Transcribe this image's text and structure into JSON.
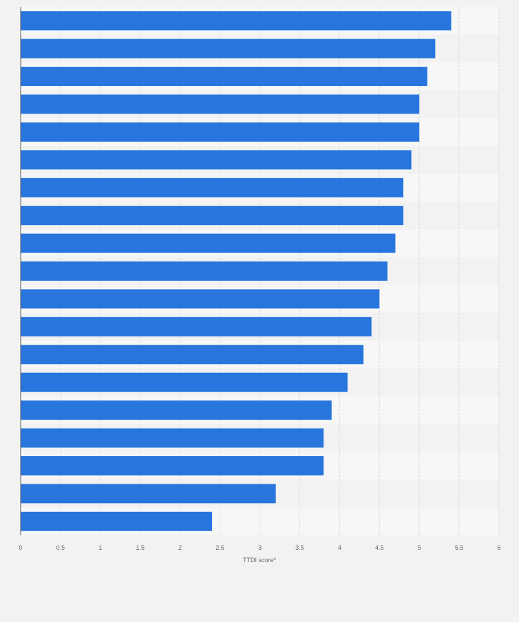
{
  "chart_data": {
    "type": "bar",
    "orientation": "horizontal",
    "categories": [
      "",
      "",
      "",
      "",
      "",
      "",
      "",
      "",
      "",
      "",
      "",
      "",
      "",
      "",
      "",
      "",
      "",
      "",
      ""
    ],
    "values": [
      5.4,
      5.2,
      5.1,
      5.0,
      5.0,
      4.9,
      4.8,
      4.8,
      4.7,
      4.6,
      4.5,
      4.4,
      4.3,
      4.1,
      3.9,
      3.8,
      3.8,
      3.2,
      2.4
    ],
    "xlabel": "TTDI score*",
    "xlim": [
      0,
      6
    ],
    "x_ticks": [
      0,
      0.5,
      1,
      1.5,
      2,
      2.5,
      3,
      3.5,
      4,
      4.5,
      5,
      5.5,
      6
    ],
    "x_tick_labels": [
      "0",
      "0.5",
      "1",
      "1.5",
      "2",
      "2.5",
      "3",
      "3.5",
      "4",
      "4.5",
      "5",
      "5.5",
      "6"
    ],
    "grid": true,
    "colors": {
      "bar": "#2876dd",
      "page_background": "#f2f2f2",
      "band_light": "#f7f7f7",
      "band_dark": "#f2f2f2",
      "gridline": "#d9d9d9",
      "axis_line": "#555555",
      "tick_text": "#666666"
    }
  }
}
